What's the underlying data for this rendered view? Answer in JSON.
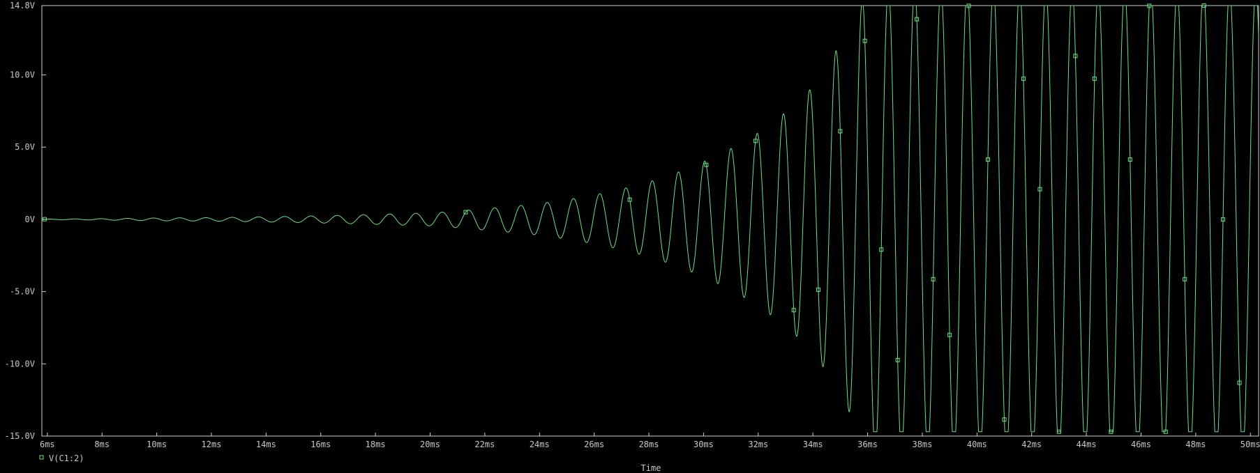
{
  "chart_data": {
    "type": "line",
    "title": "",
    "xlabel": "Time",
    "ylabel": "",
    "xlim": [
      5.8,
      50.3
    ],
    "ylim": [
      -15.0,
      14.8
    ],
    "grid": false,
    "x_ticks": [
      "6ms",
      "8ms",
      "10ms",
      "12ms",
      "14ms",
      "16ms",
      "18ms",
      "20ms",
      "22ms",
      "24ms",
      "26ms",
      "28ms",
      "30ms",
      "32ms",
      "34ms",
      "36ms",
      "38ms",
      "40ms",
      "42ms",
      "44ms",
      "46ms",
      "48ms",
      "50ms"
    ],
    "x_tick_values": [
      6,
      8,
      10,
      12,
      14,
      16,
      18,
      20,
      22,
      24,
      26,
      28,
      30,
      32,
      34,
      36,
      38,
      40,
      42,
      44,
      46,
      48,
      50
    ],
    "y_ticks": [
      "14.8V",
      "10.0V",
      "5.0V",
      "0V",
      "-5.0V",
      "-10.0V",
      "-15.0V"
    ],
    "y_tick_values": [
      14.8,
      10.0,
      5.0,
      0,
      -5.0,
      -10.0,
      -15.0
    ],
    "series": [
      {
        "name": "V(C1:2)",
        "color": "#6fe08a",
        "period_ms": 0.96,
        "clip_high": 14.8,
        "clip_low": -14.7,
        "envelope": {
          "t_ms": [
            5.8,
            8,
            10,
            12,
            14,
            16,
            18,
            20,
            22,
            24,
            26,
            28,
            30,
            32,
            34,
            35,
            36,
            50.3
          ],
          "amplitude_v": [
            0.02,
            0.05,
            0.1,
            0.12,
            0.18,
            0.25,
            0.35,
            0.45,
            0.75,
            1.1,
            1.7,
            2.6,
            4.0,
            6.0,
            9.2,
            12.2,
            16.0,
            16.0
          ]
        },
        "markers_ms": [
          5.9,
          21.3,
          27.3,
          30.1,
          31.9,
          33.3,
          34.2,
          35.0,
          35.9,
          36.5,
          37.1,
          37.8,
          38.4,
          39.0,
          39.7,
          40.4,
          41.0,
          41.7,
          42.3,
          43.0,
          43.6,
          44.3,
          44.9,
          45.6,
          46.3,
          46.9,
          47.6,
          48.3,
          49.0,
          49.6
        ]
      }
    ]
  },
  "legend": {
    "label": "V(C1:2)",
    "marker": "square-marker"
  },
  "axis": {
    "x_title": "Time"
  },
  "colors": {
    "background": "#000000",
    "frame": "#d0d0d0",
    "text": "#c8c8c8",
    "trace": "#6fe08a"
  }
}
